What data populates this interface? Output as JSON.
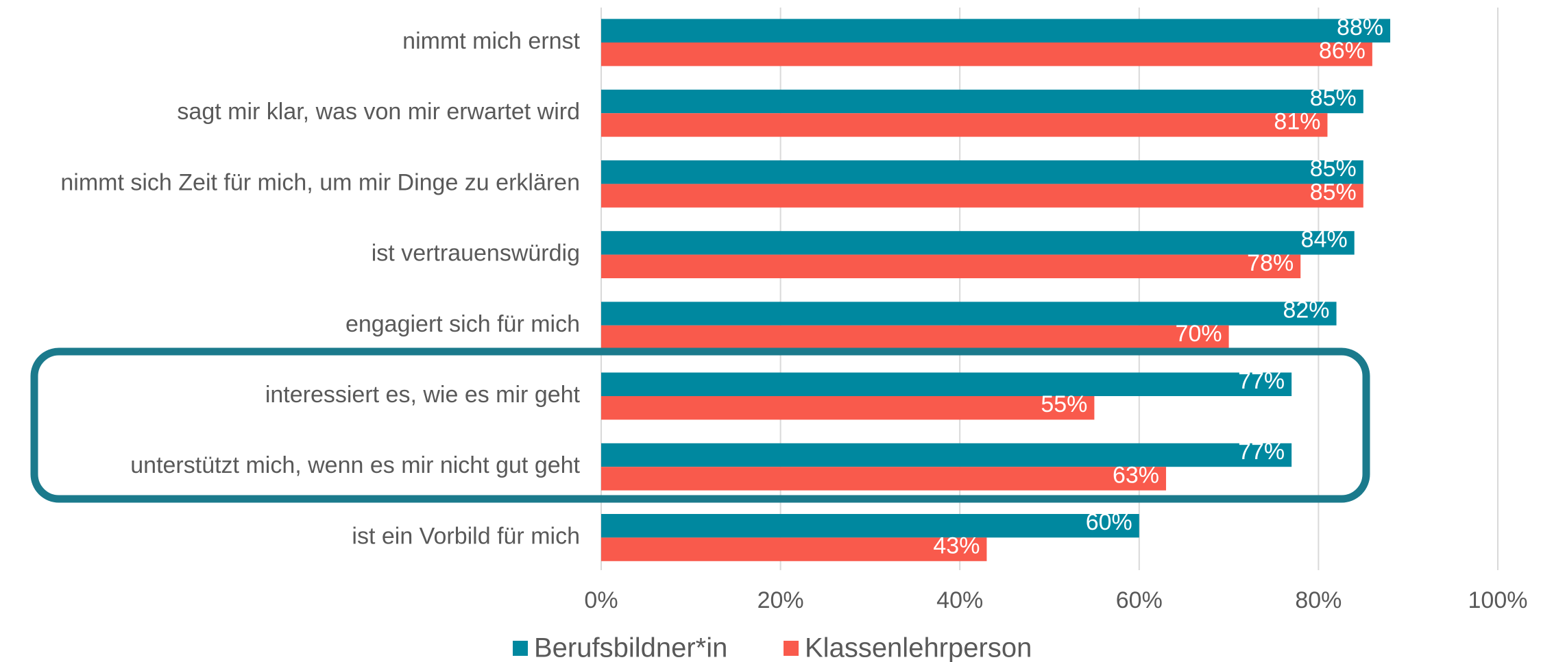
{
  "chart_data": {
    "type": "bar",
    "orientation": "horizontal",
    "categories": [
      "nimmt mich ernst",
      "sagt mir klar, was von mir erwartet wird",
      "nimmt sich Zeit für mich, um mir Dinge zu erklären",
      "ist vertrauenswürdig",
      "engagiert sich für mich",
      "interessiert es, wie es mir geht",
      "unterstützt mich, wenn es mir nicht gut geht",
      "ist ein Vorbild für mich"
    ],
    "series": [
      {
        "name": "Berufsbildner*in",
        "color": "#00889f",
        "values": [
          88,
          85,
          85,
          84,
          82,
          77,
          77,
          60
        ],
        "value_labels": [
          "88%",
          "85%",
          "85%",
          "84%",
          "82%",
          "77%",
          "77%",
          "60%"
        ]
      },
      {
        "name": "Klassenlehrperson",
        "color": "#f95a4c",
        "values": [
          86,
          81,
          85,
          78,
          70,
          55,
          63,
          43
        ],
        "value_labels": [
          "86%",
          "81%",
          "85%",
          "78%",
          "70%",
          "55%",
          "63%",
          "43%"
        ]
      }
    ],
    "xlim": [
      0,
      100
    ],
    "xticks": [
      {
        "value": 0,
        "label": "0%"
      },
      {
        "value": 20,
        "label": "20%"
      },
      {
        "value": 40,
        "label": "40%"
      },
      {
        "value": 60,
        "label": "60%"
      },
      {
        "value": 80,
        "label": "80%"
      },
      {
        "value": 100,
        "label": "100%"
      }
    ],
    "grid": true,
    "legend": "bottom"
  }
}
